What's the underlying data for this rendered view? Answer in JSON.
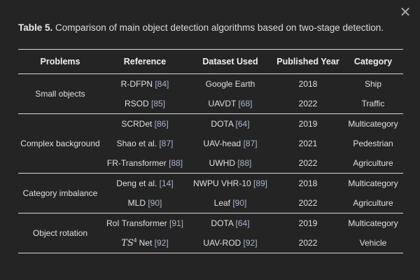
{
  "window": {
    "close_glyph": "✕"
  },
  "caption": {
    "label": "Table 5.",
    "text": " Comparison of main object detection algorithms based on two-stage detection."
  },
  "headers": [
    "Problems",
    "Reference",
    "Dataset Used",
    "Published Year",
    "Category"
  ],
  "groups": [
    {
      "problem": "Small objects",
      "rows": [
        {
          "ref_name": "R-DFPN ",
          "ref_cite": "[84]",
          "dataset_name": "Google Earth",
          "dataset_cite": "",
          "year": "2018",
          "category": "Ship"
        },
        {
          "ref_name": "RSOD ",
          "ref_cite": "[85]",
          "dataset_name": "UAVDT ",
          "dataset_cite": "[68]",
          "year": "2022",
          "category": "Traffic"
        }
      ]
    },
    {
      "problem": "Complex background",
      "rows": [
        {
          "ref_name": "SCRDet ",
          "ref_cite": "[86]",
          "dataset_name": "DOTA ",
          "dataset_cite": "[64]",
          "year": "2019",
          "category": "Multicategory"
        },
        {
          "ref_name": "Shao et al. ",
          "ref_cite": "[87]",
          "dataset_name": "UAV-head ",
          "dataset_cite": "[87]",
          "year": "2021",
          "category": "Pedestrian"
        },
        {
          "ref_name": "FR-Transformer ",
          "ref_cite": "[88]",
          "dataset_name": "UWHD ",
          "dataset_cite": "[88]",
          "year": "2022",
          "category": "Agriculture"
        }
      ]
    },
    {
      "problem": "Category imbalance",
      "rows": [
        {
          "ref_name": "Deng et al. ",
          "ref_cite": "[14]",
          "dataset_name": "NWPU VHR-10 ",
          "dataset_cite": "[89]",
          "year": "2018",
          "category": "Multicategory"
        },
        {
          "ref_name": "MLD ",
          "ref_cite": "[90]",
          "dataset_name": "Leaf ",
          "dataset_cite": "[90]",
          "year": "2022",
          "category": "Agriculture"
        }
      ]
    },
    {
      "problem": "Object rotation",
      "rows": [
        {
          "ref_name": "RoI Transformer ",
          "ref_cite": "[91]",
          "dataset_name": "DOTA ",
          "dataset_cite": "[64]",
          "year": "2019",
          "category": "Multicategory"
        },
        {
          "ref_name": "TS",
          "ref_sup": "4",
          "ref_suffix": " Net ",
          "ref_cite": "[92]",
          "dataset_name": "UAV-ROD ",
          "dataset_cite": "[92]",
          "year": "2022",
          "category": "Vehicle"
        }
      ]
    }
  ]
}
